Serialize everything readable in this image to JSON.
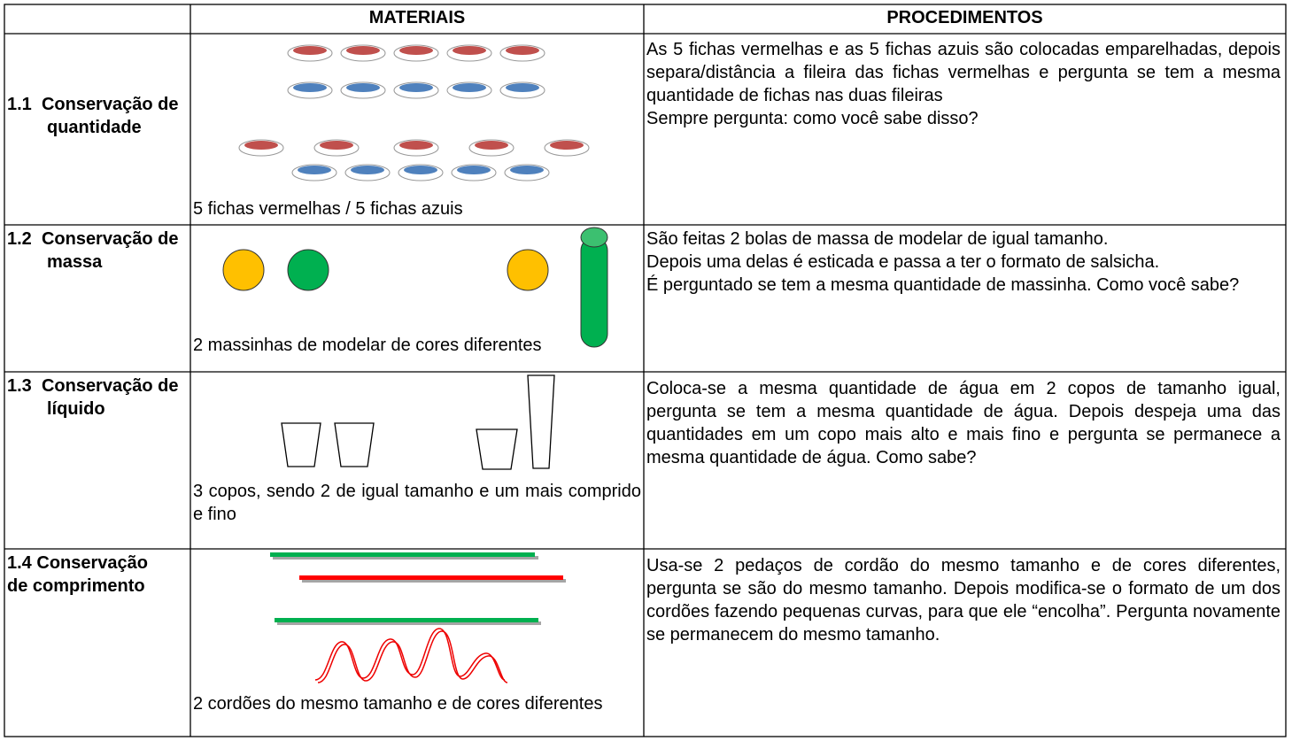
{
  "header": {
    "materials": "MATERIAIS",
    "procedures": "PROCEDIMENTOS"
  },
  "rows": [
    {
      "number": "1.1",
      "name": "Conservação de quantidade",
      "materials": "5 fichas vermelhas / 5 fichas azuis",
      "procedure": [
        "As 5 fichas vermelhas e as 5 fichas azuis são colocadas emparelhadas, depois separa/distância a fileira das fichas vermelhas e pergunta se tem a mesma quantidade de fichas nas duas fileiras",
        "Sempre pergunta: como você sabe disso?"
      ]
    },
    {
      "number": "1.2",
      "name": "Conservação de massa",
      "materials": "2 massinhas de modelar de cores diferentes",
      "procedure": [
        "São feitas 2 bolas de massa de modelar de igual tamanho.",
        "Depois uma delas é esticada e passa a ter o formato de salsicha.",
        "É perguntado se tem a mesma quantidade de massinha. Como você sabe?"
      ]
    },
    {
      "number": "1.3",
      "name": "Conservação de líquido",
      "materials": "3 copos, sendo 2 de igual tamanho e um mais comprido e fino",
      "procedure": [
        "Coloca-se a mesma quantidade de água em 2 copos de tamanho igual, pergunta se tem a mesma quantidade de água. Depois despeja uma das quantidades em um copo mais alto e mais fino e pergunta se permanece a mesma quantidade de água. Como sabe?"
      ]
    },
    {
      "number": "1.4",
      "name": "Conservação de comprimento",
      "materials": "2 cordões do mesmo tamanho e de cores diferentes",
      "procedure": [
        "Usa-se 2 pedaços de cordão do mesmo tamanho e de cores diferentes, pergunta se são do mesmo tamanho. Depois modifica-se o formato de um dos cordões fazendo pequenas curvas, para que ele “encolha”. Pergunta novamente se permanecem do mesmo tamanho."
      ]
    }
  ]
}
